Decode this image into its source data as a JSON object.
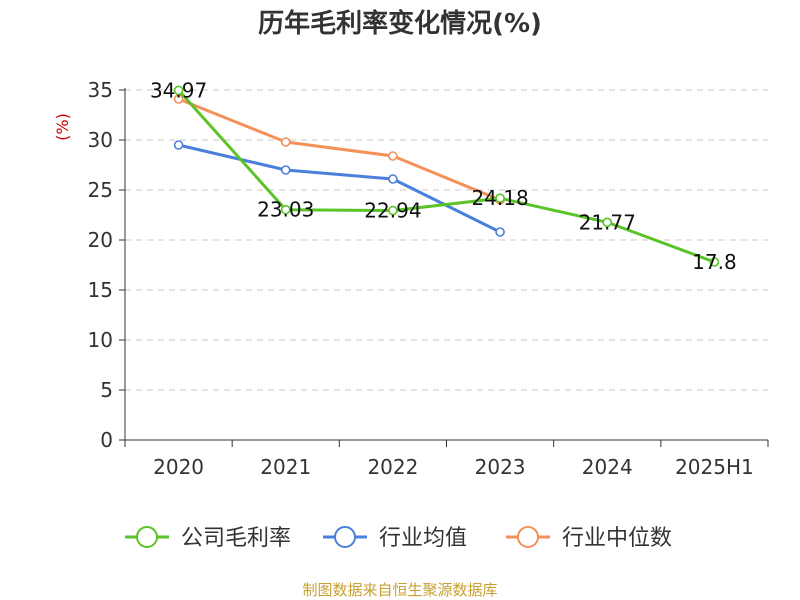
{
  "chart_data": {
    "type": "line",
    "title": "历年毛利率变化情况(%)",
    "ylabel": "(%)",
    "xlabel": "",
    "categories": [
      "2020",
      "2021",
      "2022",
      "2023",
      "2024",
      "2025H1"
    ],
    "ylim": [
      0,
      35
    ],
    "yticks": [
      0,
      5,
      10,
      15,
      20,
      25,
      30,
      35
    ],
    "grid": true,
    "legend_position": "bottom",
    "series": [
      {
        "name": "公司毛利率",
        "color": "#5ac328",
        "values": [
          34.97,
          23.03,
          22.94,
          24.18,
          21.77,
          17.8
        ],
        "labels": [
          "34.97",
          "23.03",
          "22.94",
          "24.18",
          "21.77",
          "17.8"
        ]
      },
      {
        "name": "行业均值",
        "color": "#4a7fdb",
        "values": [
          29.5,
          27.0,
          26.1,
          20.8,
          null,
          null
        ]
      },
      {
        "name": "行业中位数",
        "color": "#f4915a",
        "values": [
          34.1,
          29.8,
          28.4,
          24.0,
          null,
          null
        ]
      }
    ],
    "source": "制图数据来自恒生聚源数据库"
  }
}
